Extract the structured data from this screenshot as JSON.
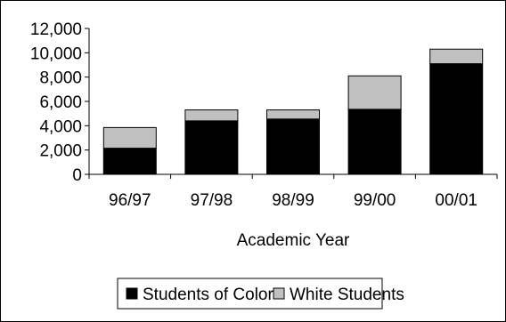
{
  "chart_data": {
    "type": "bar",
    "stacked": true,
    "categories": [
      "96/97",
      "97/98",
      "98/99",
      "99/00",
      "00/01"
    ],
    "series": [
      {
        "name": "Students of Color",
        "values": [
          2150,
          4400,
          4550,
          5350,
          9100
        ],
        "color": "#000000"
      },
      {
        "name": "White Students",
        "values": [
          1700,
          900,
          750,
          2750,
          1200
        ],
        "color": "#c0c0c0"
      }
    ],
    "xlabel": "Academic Year",
    "ylabel": "",
    "ylim": [
      0,
      12000
    ],
    "yticks": [
      0,
      2000,
      4000,
      6000,
      8000,
      10000,
      12000
    ],
    "ytick_labels": [
      "0",
      "2,000",
      "4,000",
      "6,000",
      "8,000",
      "10,000",
      "12,000"
    ],
    "grid": false,
    "legend_position": "bottom"
  }
}
